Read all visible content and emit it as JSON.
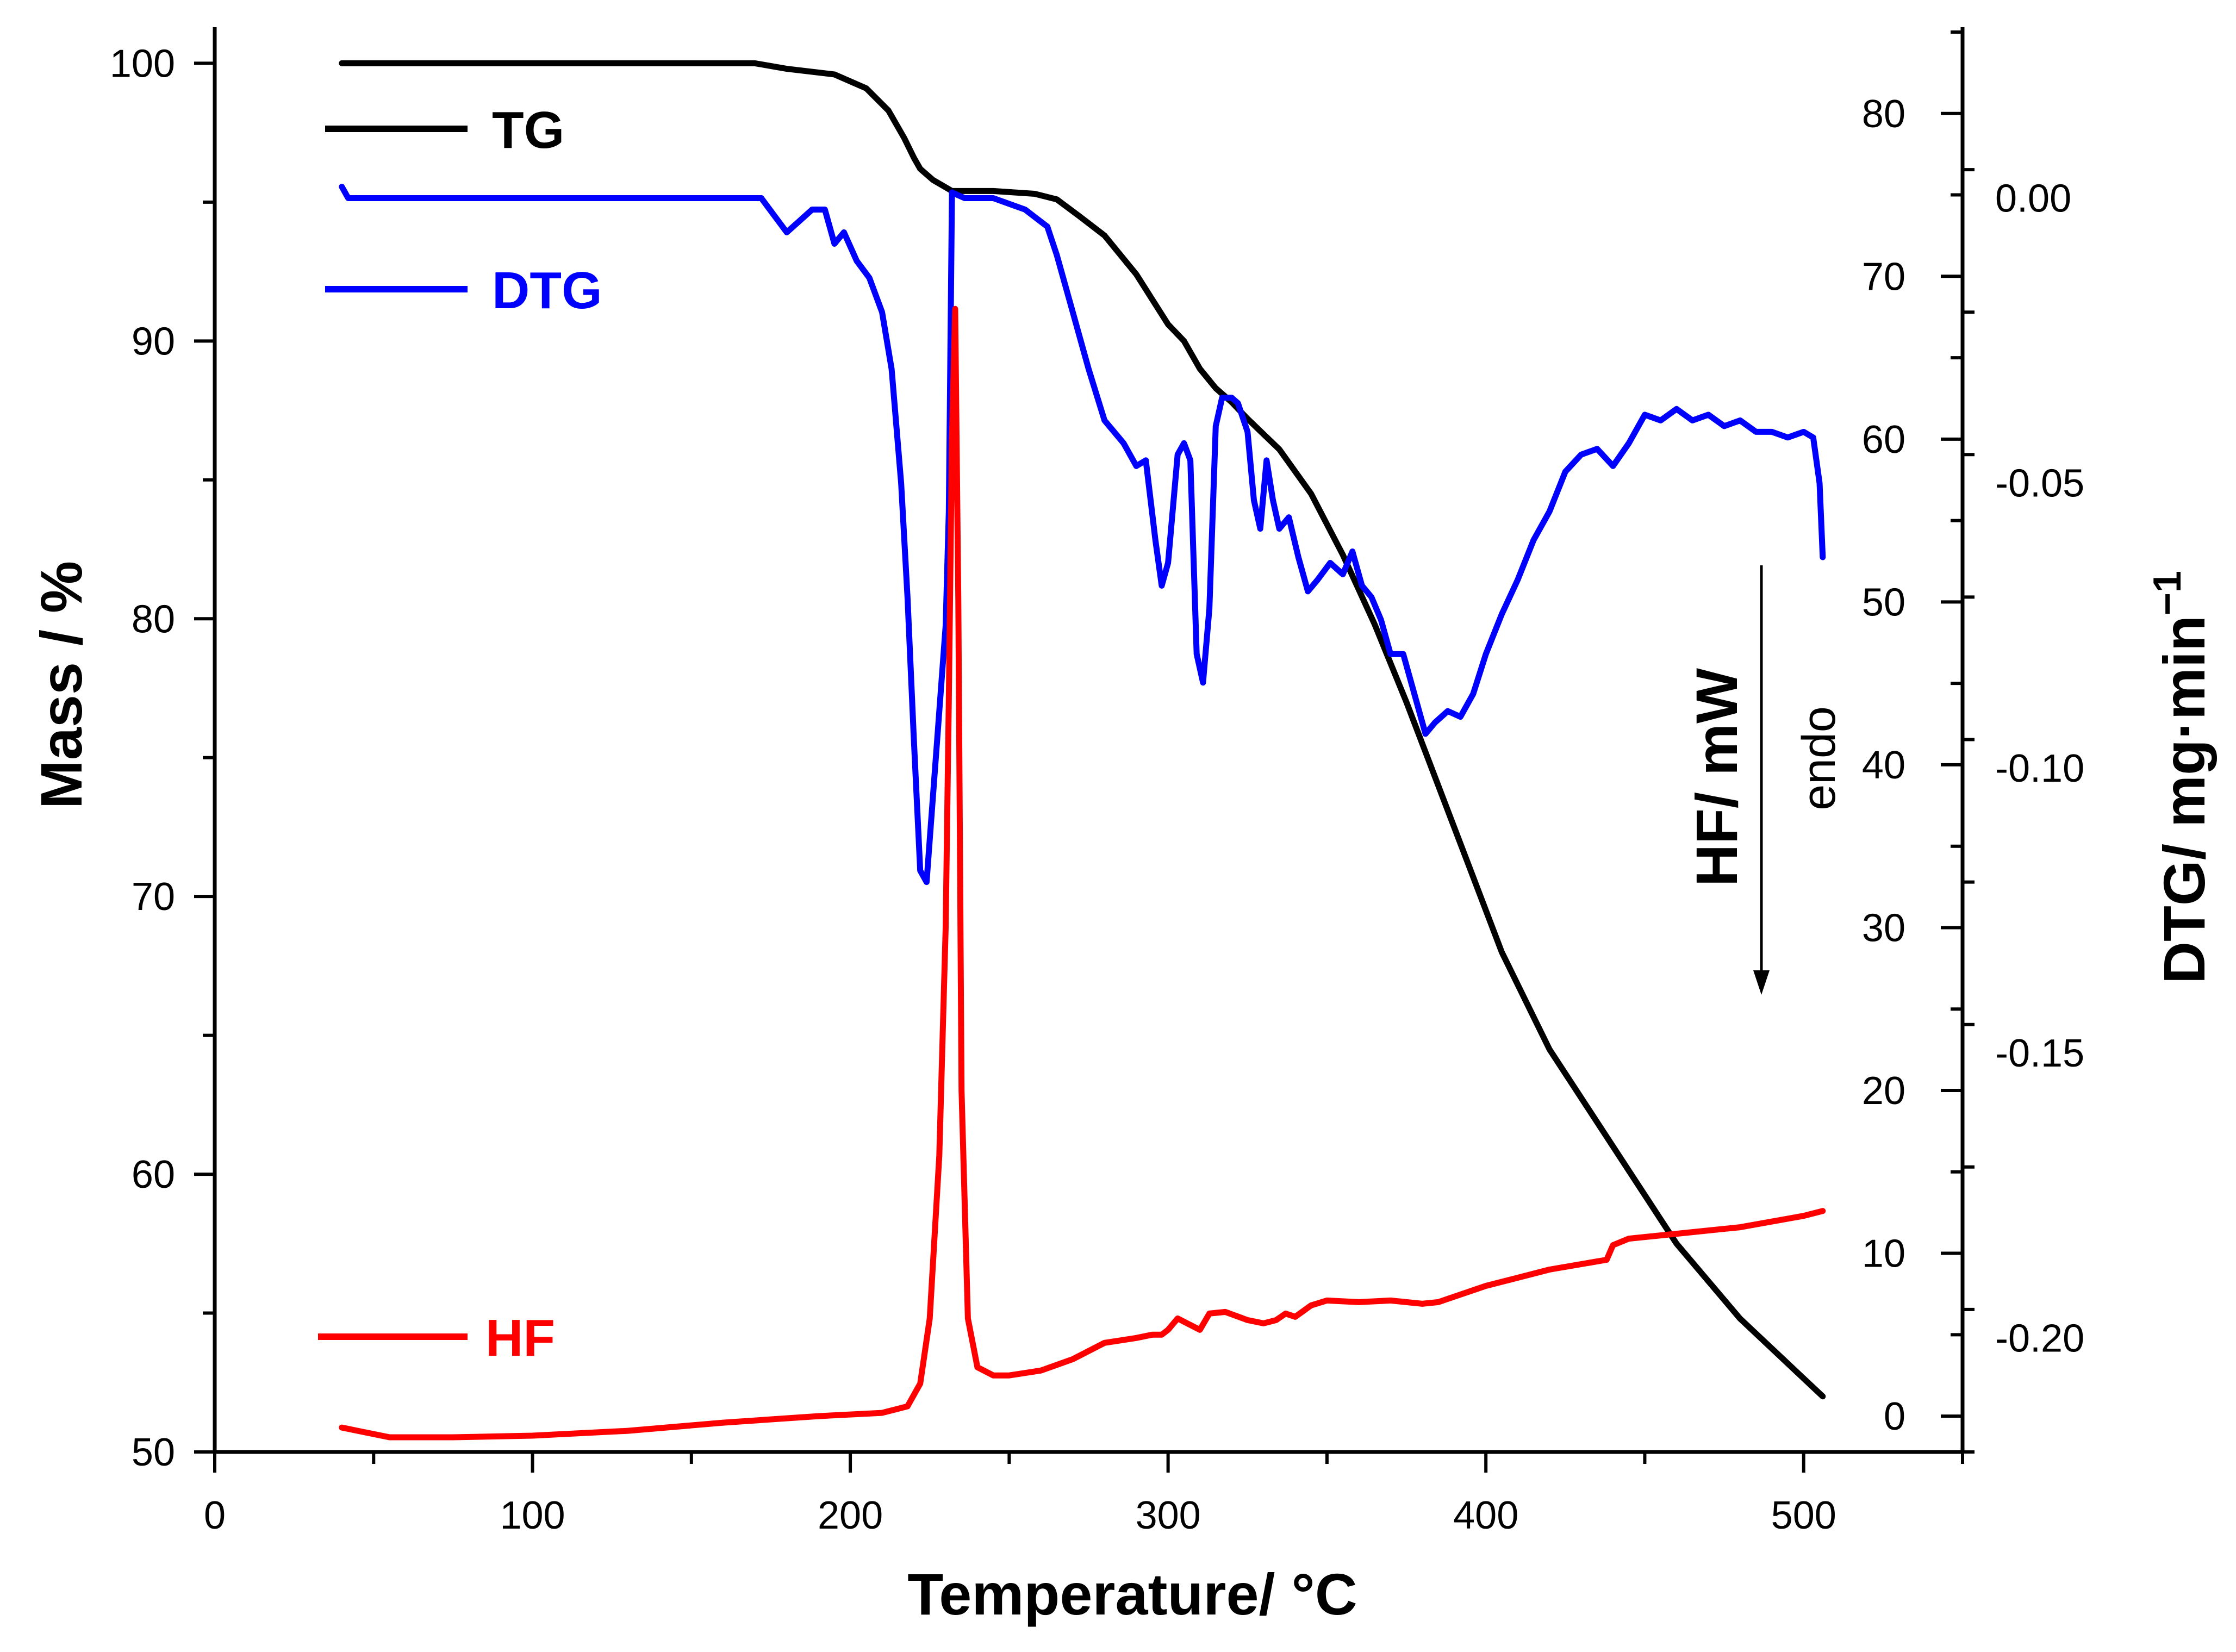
{
  "chart_data": {
    "type": "line",
    "title": "",
    "xlabel": "Temperature/ ",
    "xlabel_unit": "°C",
    "ylabel_left": "Mass / %",
    "ylabel_hf": "HF/ mW",
    "ylabel_dtg": "DTG/ mg",
    "ylabel_dtg_dot": "·",
    "ylabel_dtg_unit": "min",
    "ylabel_dtg_exp": "−1",
    "endo_label": "endo",
    "xlim": [
      0,
      550
    ],
    "ylim_mass": [
      50,
      101.3
    ],
    "ylim_hf": [
      -2.2,
      85.3
    ],
    "ylim_dtg": [
      -0.22,
      0.03
    ],
    "x_ticks": [
      "0",
      "100",
      "200",
      "300",
      "400",
      "500"
    ],
    "mass_ticks": [
      "50",
      "60",
      "70",
      "80",
      "90",
      "100"
    ],
    "hf_ticks": [
      "0",
      "10",
      "20",
      "30",
      "40",
      "50",
      "60",
      "70",
      "80"
    ],
    "dtg_ticks": [
      "0.00",
      "-0.05",
      "-0.10",
      "-0.15",
      "-0.20"
    ],
    "legend": {
      "tg": "TG",
      "dtg": "DTG",
      "hf": "HF"
    },
    "colors": {
      "tg": "#000000",
      "dtg": "#0000ff",
      "hf": "#ff0000",
      "axis": "#000000"
    },
    "series": [
      {
        "name": "TG",
        "axis": "mass",
        "x": [
          40,
          100,
          170,
          180,
          195,
          205,
          212,
          217,
          220,
          222,
          226,
          232,
          245,
          258,
          265,
          272,
          280,
          290,
          300,
          305,
          310,
          315,
          320,
          325,
          335,
          345,
          355,
          365,
          375,
          385,
          395,
          405,
          420,
          440,
          460,
          480,
          506
        ],
        "y": [
          100,
          100,
          100,
          99.8,
          99.6,
          99.1,
          98.3,
          97.3,
          96.6,
          96.2,
          95.8,
          95.4,
          95.4,
          95.3,
          95.1,
          94.5,
          93.8,
          92.4,
          90.6,
          90.0,
          89.0,
          88.3,
          87.8,
          87.2,
          86.1,
          84.5,
          82.3,
          79.8,
          77.0,
          74.0,
          71.0,
          68.0,
          64.5,
          61.0,
          57.5,
          54.8,
          52.0
        ]
      },
      {
        "name": "DTG",
        "axis": "dtg",
        "x": [
          40,
          42,
          60,
          100,
          150,
          172,
          176,
          180,
          184,
          188,
          192,
          195,
          198,
          202,
          206,
          210,
          213,
          216,
          218,
          220,
          222,
          224,
          226,
          228,
          230,
          231,
          232,
          236,
          245,
          255,
          262,
          265,
          270,
          275,
          280,
          286,
          290,
          293,
          296,
          298,
          300,
          303,
          305,
          307,
          309,
          311,
          313,
          315,
          317,
          320,
          322,
          325,
          327,
          329,
          331,
          333,
          335,
          338,
          341,
          344,
          347,
          351,
          355,
          358,
          361,
          364,
          367,
          370,
          374,
          378,
          381,
          384,
          388,
          392,
          396,
          400,
          405,
          410,
          415,
          420,
          425,
          430,
          435,
          440,
          445,
          450,
          455,
          460,
          465,
          470,
          475,
          480,
          485,
          490,
          495,
          500,
          503,
          505,
          506
        ],
        "y": [
          0.002,
          0.0,
          0.0,
          0.0,
          0.0,
          0.0,
          -0.003,
          -0.006,
          -0.004,
          -0.002,
          -0.002,
          -0.008,
          -0.006,
          -0.011,
          -0.014,
          -0.02,
          -0.03,
          -0.05,
          -0.07,
          -0.095,
          -0.118,
          -0.12,
          -0.105,
          -0.09,
          -0.075,
          -0.055,
          0.001,
          0.0,
          0.0,
          -0.002,
          -0.005,
          -0.01,
          -0.02,
          -0.03,
          -0.039,
          -0.043,
          -0.047,
          -0.046,
          -0.06,
          -0.068,
          -0.064,
          -0.045,
          -0.043,
          -0.046,
          -0.08,
          -0.085,
          -0.072,
          -0.04,
          -0.035,
          -0.035,
          -0.036,
          -0.041,
          -0.053,
          -0.058,
          -0.046,
          -0.053,
          -0.058,
          -0.056,
          -0.063,
          -0.069,
          -0.067,
          -0.064,
          -0.066,
          -0.062,
          -0.068,
          -0.07,
          -0.074,
          -0.08,
          -0.08,
          -0.088,
          -0.094,
          -0.092,
          -0.09,
          -0.091,
          -0.087,
          -0.08,
          -0.073,
          -0.067,
          -0.06,
          -0.055,
          -0.048,
          -0.045,
          -0.044,
          -0.047,
          -0.043,
          -0.038,
          -0.039,
          -0.037,
          -0.039,
          -0.038,
          -0.04,
          -0.039,
          -0.041,
          -0.041,
          -0.042,
          -0.041,
          -0.042,
          -0.05,
          -0.063
        ]
      },
      {
        "name": "HF",
        "axis": "hf",
        "x": [
          40,
          45,
          55,
          75,
          100,
          130,
          160,
          190,
          210,
          218,
          222,
          225,
          228,
          230,
          231,
          232,
          233,
          234,
          235,
          237,
          240,
          245,
          250,
          260,
          270,
          280,
          290,
          295,
          298,
          300,
          303,
          306,
          310,
          313,
          318,
          325,
          330,
          334,
          337,
          340,
          345,
          350,
          360,
          370,
          380,
          385,
          400,
          420,
          438,
          440,
          445,
          460,
          480,
          500,
          506
        ],
        "y": [
          -0.7,
          -0.9,
          -1.3,
          -1.3,
          -1.2,
          -0.9,
          -0.4,
          0.0,
          0.2,
          0.6,
          2.0,
          6.0,
          16.0,
          30.0,
          44.0,
          60.0,
          68.0,
          50.0,
          20.0,
          6.0,
          3.0,
          2.5,
          2.5,
          2.8,
          3.5,
          4.5,
          4.8,
          5.0,
          5.0,
          5.3,
          6.0,
          5.7,
          5.3,
          6.3,
          6.4,
          5.9,
          5.7,
          5.9,
          6.3,
          6.1,
          6.8,
          7.1,
          7.0,
          7.1,
          6.9,
          7.0,
          8.0,
          9.0,
          9.6,
          10.5,
          10.9,
          11.2,
          11.6,
          12.3,
          12.6
        ]
      }
    ]
  }
}
